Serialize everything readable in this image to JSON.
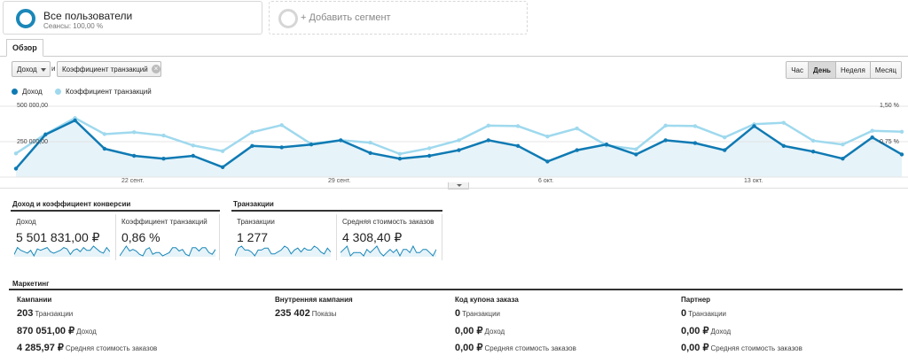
{
  "segments": {
    "active": {
      "title": "Все пользователи",
      "subtitle": "Сеансы: 100,00 %"
    },
    "add_label": "+ Добавить сегмент"
  },
  "tabs": [
    {
      "label": "Обзор"
    }
  ],
  "controls": {
    "metric1": "Доход",
    "connector": "и",
    "metric2": "Коэффициент транзакций",
    "periods": [
      "Час",
      "День",
      "Неделя",
      "Месяц"
    ],
    "active_period": "День"
  },
  "colors": {
    "revenue": "#0f7ab3",
    "conversion": "#9fd9ee"
  },
  "chart_data": {
    "type": "line",
    "x_labels": [
      "22 сент.",
      "29 сент.",
      "6 окт.",
      "13 окт."
    ],
    "y_left_ticks": [
      "500 000,00",
      "250 000,00"
    ],
    "y_right_ticks": [
      "1,50 %",
      "0,75 %"
    ],
    "left_ylim": [
      0,
      500000
    ],
    "right_ylim": [
      0,
      1.5
    ],
    "series": [
      {
        "name": "Доход",
        "axis": "left",
        "values": [
          60000,
          300000,
          400000,
          200000,
          150000,
          130000,
          150000,
          70000,
          220000,
          210000,
          230000,
          260000,
          170000,
          130000,
          150000,
          190000,
          260000,
          220000,
          110000,
          190000,
          230000,
          160000,
          260000,
          240000,
          190000,
          360000,
          220000,
          180000,
          130000,
          280000,
          160000
        ]
      },
      {
        "name": "Коэффициент транзакций",
        "axis": "right",
        "values": [
          0.5,
          0.91,
          1.25,
          0.91,
          0.95,
          0.88,
          0.67,
          0.55,
          0.95,
          1.1,
          0.7,
          0.78,
          0.73,
          0.49,
          0.61,
          0.78,
          1.09,
          1.08,
          0.86,
          1.03,
          0.67,
          0.59,
          1.09,
          1.08,
          0.84,
          1.12,
          1.15,
          0.77,
          0.69,
          0.98,
          0.96
        ]
      }
    ]
  },
  "groups": {
    "revenue": {
      "title": "Доход и коэффициент конверсии",
      "metrics": [
        {
          "label": "Доход",
          "value": "5 501 831,00 ₽",
          "spark": [
            3,
            8,
            6,
            5,
            4,
            6,
            2,
            7,
            6,
            7,
            8,
            5,
            4,
            5,
            6,
            8,
            7,
            3,
            6,
            7,
            5,
            8,
            6,
            6,
            9,
            7,
            5,
            4,
            8,
            5
          ]
        },
        {
          "label": "Коэффициент транзакций",
          "value": "0,86 %",
          "spark": [
            3,
            6,
            9,
            6,
            7,
            6,
            4,
            3,
            7,
            8,
            4,
            5,
            5,
            3,
            4,
            5,
            8,
            8,
            6,
            7,
            4,
            3,
            8,
            8,
            6,
            8,
            8,
            5,
            4,
            7
          ]
        }
      ]
    },
    "transactions": {
      "title": "Транзакции",
      "metrics": [
        {
          "label": "Транзакции",
          "value": "1 277",
          "spark": [
            3,
            7,
            8,
            6,
            6,
            5,
            3,
            6,
            6,
            7,
            7,
            4,
            4,
            5,
            6,
            8,
            7,
            4,
            6,
            7,
            5,
            7,
            6,
            6,
            8,
            7,
            5,
            4,
            7,
            5
          ]
        },
        {
          "label": "Средняя стоимость заказов",
          "value": "4 308,40 ₽",
          "spark": [
            5,
            6,
            7,
            4,
            5,
            5,
            5,
            4,
            6,
            5,
            6,
            7,
            5,
            4,
            5,
            6,
            5,
            6,
            4,
            6,
            6,
            5,
            7,
            5,
            5,
            6,
            6,
            5,
            4,
            6
          ]
        }
      ]
    }
  },
  "marketing": {
    "title": "Маркетинг",
    "columns": [
      {
        "header": "Кампании",
        "rows": [
          {
            "value": "203",
            "unit": "Транзакции"
          },
          {
            "value": "870 051,00 ₽",
            "unit": "Доход"
          },
          {
            "value": "4 285,97 ₽",
            "unit": "Средняя стоимость заказов"
          }
        ]
      },
      {
        "header": "Внутренняя кампания",
        "rows": [
          {
            "value": "235 402",
            "unit": "Показы"
          }
        ]
      },
      {
        "header": "Код купона заказа",
        "rows": [
          {
            "value": "0",
            "unit": "Транзакции"
          },
          {
            "value": "0,00 ₽",
            "unit": "Доход"
          },
          {
            "value": "0,00 ₽",
            "unit": "Средняя стоимость заказов"
          }
        ]
      },
      {
        "header": "Партнер",
        "rows": [
          {
            "value": "0",
            "unit": "Транзакции"
          },
          {
            "value": "0,00 ₽",
            "unit": "Доход"
          },
          {
            "value": "0,00 ₽",
            "unit": "Средняя стоимость заказов"
          }
        ]
      }
    ]
  }
}
